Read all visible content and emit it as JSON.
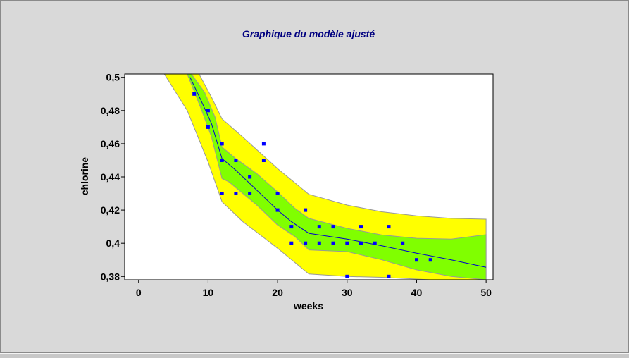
{
  "chart_data": {
    "type": "scatter",
    "title": "Graphique du modèle ajusté",
    "xlabel": "weeks",
    "ylabel": "chlorine",
    "xlim": [
      -2,
      51
    ],
    "ylim": [
      0.378,
      0.502
    ],
    "x_ticks": [
      0,
      10,
      20,
      30,
      40,
      50
    ],
    "x_tick_labels": [
      "0",
      "10",
      "20",
      "30",
      "40",
      "50"
    ],
    "y_ticks": [
      0.38,
      0.4,
      0.42,
      0.44,
      0.46,
      0.48,
      0.5
    ],
    "y_tick_labels": [
      "0,38",
      "0,4",
      "0,42",
      "0,44",
      "0,46",
      "0,48",
      "0,5"
    ],
    "grid": false,
    "colors": {
      "points": "#0000ff",
      "fit_line": "#0000cc",
      "confidence_band": "#80ff00",
      "prediction_band": "#ffff00",
      "title": "#000080"
    },
    "points": [
      {
        "x": 8,
        "y": 0.49
      },
      {
        "x": 10,
        "y": 0.48
      },
      {
        "x": 10,
        "y": 0.47
      },
      {
        "x": 12,
        "y": 0.46
      },
      {
        "x": 12,
        "y": 0.45
      },
      {
        "x": 12,
        "y": 0.43
      },
      {
        "x": 14,
        "y": 0.45
      },
      {
        "x": 14,
        "y": 0.43
      },
      {
        "x": 16,
        "y": 0.44
      },
      {
        "x": 16,
        "y": 0.43
      },
      {
        "x": 18,
        "y": 0.46
      },
      {
        "x": 18,
        "y": 0.45
      },
      {
        "x": 20,
        "y": 0.43
      },
      {
        "x": 20,
        "y": 0.42
      },
      {
        "x": 22,
        "y": 0.41
      },
      {
        "x": 22,
        "y": 0.4
      },
      {
        "x": 24,
        "y": 0.42
      },
      {
        "x": 24,
        "y": 0.4
      },
      {
        "x": 26,
        "y": 0.41
      },
      {
        "x": 26,
        "y": 0.4
      },
      {
        "x": 28,
        "y": 0.41
      },
      {
        "x": 28,
        "y": 0.4
      },
      {
        "x": 30,
        "y": 0.4
      },
      {
        "x": 30,
        "y": 0.38
      },
      {
        "x": 32,
        "y": 0.41
      },
      {
        "x": 32,
        "y": 0.4
      },
      {
        "x": 34,
        "y": 0.4
      },
      {
        "x": 36,
        "y": 0.41
      },
      {
        "x": 36,
        "y": 0.38
      },
      {
        "x": 38,
        "y": 0.4
      },
      {
        "x": 40,
        "y": 0.39
      },
      {
        "x": 42,
        "y": 0.39
      }
    ],
    "fit_line": [
      {
        "x": 7.4,
        "y": 0.5
      },
      {
        "x": 9,
        "y": 0.486
      },
      {
        "x": 10.5,
        "y": 0.472
      },
      {
        "x": 12,
        "y": 0.451
      },
      {
        "x": 14,
        "y": 0.444
      },
      {
        "x": 16,
        "y": 0.436
      },
      {
        "x": 18,
        "y": 0.428
      },
      {
        "x": 20,
        "y": 0.42
      },
      {
        "x": 22,
        "y": 0.413
      },
      {
        "x": 24.5,
        "y": 0.406
      },
      {
        "x": 30,
        "y": 0.4025
      },
      {
        "x": 35,
        "y": 0.3985
      },
      {
        "x": 40,
        "y": 0.394
      },
      {
        "x": 45,
        "y": 0.39
      },
      {
        "x": 50,
        "y": 0.3855
      }
    ],
    "confidence_band_upper": [
      {
        "x": 7.6,
        "y": 0.502
      },
      {
        "x": 9.5,
        "y": 0.491
      },
      {
        "x": 11,
        "y": 0.476
      },
      {
        "x": 12,
        "y": 0.458
      },
      {
        "x": 14,
        "y": 0.451
      },
      {
        "x": 17,
        "y": 0.442
      },
      {
        "x": 20,
        "y": 0.431
      },
      {
        "x": 22.5,
        "y": 0.421
      },
      {
        "x": 24.5,
        "y": 0.415
      },
      {
        "x": 30,
        "y": 0.409
      },
      {
        "x": 35,
        "y": 0.405
      },
      {
        "x": 40,
        "y": 0.403
      },
      {
        "x": 45,
        "y": 0.4025
      },
      {
        "x": 50,
        "y": 0.4052
      }
    ],
    "confidence_band_lower": [
      {
        "x": 50,
        "y": 0.378
      },
      {
        "x": 45,
        "y": 0.38
      },
      {
        "x": 40,
        "y": 0.384
      },
      {
        "x": 35,
        "y": 0.39
      },
      {
        "x": 30,
        "y": 0.395
      },
      {
        "x": 24.5,
        "y": 0.396
      },
      {
        "x": 22.5,
        "y": 0.404
      },
      {
        "x": 20,
        "y": 0.411
      },
      {
        "x": 17,
        "y": 0.423
      },
      {
        "x": 13,
        "y": 0.437
      },
      {
        "x": 12,
        "y": 0.439
      },
      {
        "x": 10.5,
        "y": 0.464
      },
      {
        "x": 9,
        "y": 0.481
      },
      {
        "x": 7,
        "y": 0.502
      }
    ],
    "prediction_band_upper": [
      {
        "x": 8.7,
        "y": 0.502
      },
      {
        "x": 10.5,
        "y": 0.488
      },
      {
        "x": 12,
        "y": 0.475
      },
      {
        "x": 15,
        "y": 0.464
      },
      {
        "x": 20,
        "y": 0.445
      },
      {
        "x": 24.5,
        "y": 0.4295
      },
      {
        "x": 30,
        "y": 0.423
      },
      {
        "x": 35,
        "y": 0.419
      },
      {
        "x": 40,
        "y": 0.4165
      },
      {
        "x": 45,
        "y": 0.415
      },
      {
        "x": 50,
        "y": 0.4145
      }
    ],
    "prediction_band_lower": [
      {
        "x": 50,
        "y": 0.378
      },
      {
        "x": 42,
        "y": 0.378
      },
      {
        "x": 35,
        "y": 0.3795
      },
      {
        "x": 30,
        "y": 0.38
      },
      {
        "x": 24.5,
        "y": 0.3815
      },
      {
        "x": 20,
        "y": 0.397
      },
      {
        "x": 15,
        "y": 0.413
      },
      {
        "x": 12,
        "y": 0.425
      },
      {
        "x": 10,
        "y": 0.449
      },
      {
        "x": 7,
        "y": 0.48
      },
      {
        "x": 3.7,
        "y": 0.502
      }
    ]
  }
}
